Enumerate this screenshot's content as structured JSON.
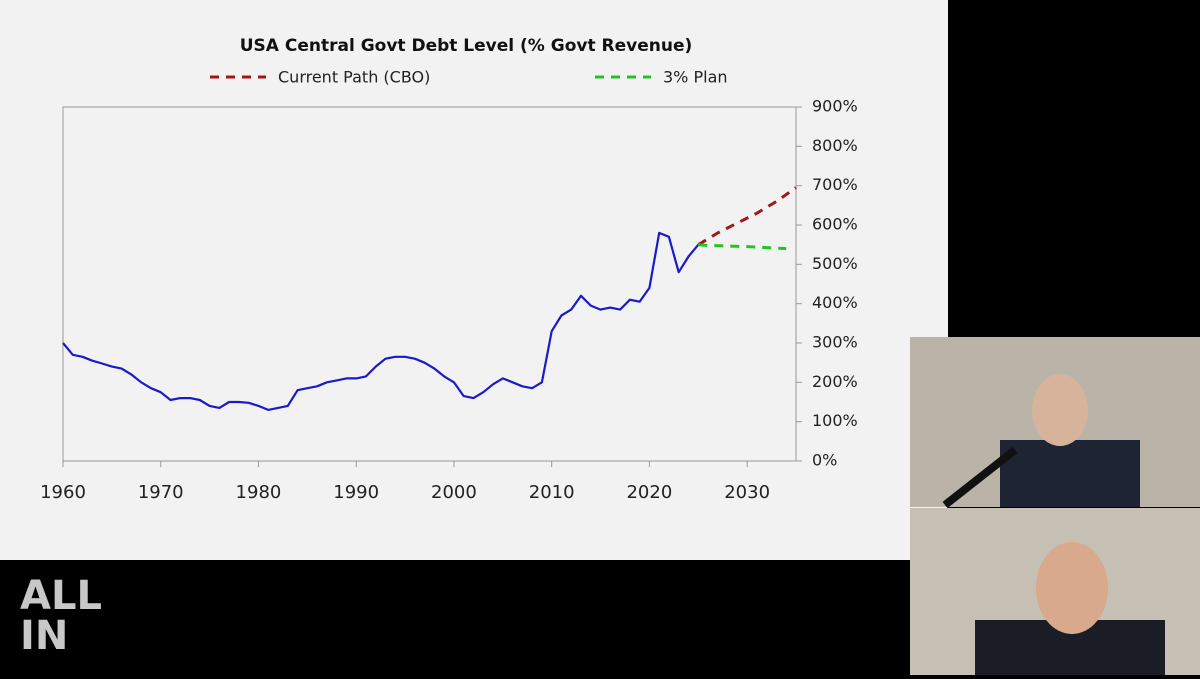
{
  "chart_data": {
    "type": "line",
    "title": "USA Central Govt Debt Level (% Govt Revenue)",
    "xlim": [
      1960,
      2035
    ],
    "xticks": [
      1960,
      1970,
      1980,
      1990,
      2000,
      2010,
      2020,
      2030
    ],
    "ylim": [
      0,
      900
    ],
    "yticks": [
      {
        "value": 0,
        "label": "0%"
      },
      {
        "value": 100,
        "label": "100%"
      },
      {
        "value": 200,
        "label": "200%"
      },
      {
        "value": 300,
        "label": "300%"
      },
      {
        "value": 400,
        "label": "400%"
      },
      {
        "value": 500,
        "label": "500%"
      },
      {
        "value": 600,
        "label": "600%"
      },
      {
        "value": 700,
        "label": "700%"
      },
      {
        "value": 800,
        "label": "800%"
      },
      {
        "value": 900,
        "label": "900%"
      }
    ],
    "series": [
      {
        "color": "#1a1ac8",
        "dashed": false,
        "x": [
          1960,
          1961,
          1962,
          1963,
          1964,
          1965,
          1966,
          1967,
          1968,
          1969,
          1970,
          1971,
          1972,
          1973,
          1974,
          1975,
          1976,
          1977,
          1978,
          1979,
          1980,
          1981,
          1982,
          1983,
          1984,
          1985,
          1986,
          1987,
          1988,
          1989,
          1990,
          1991,
          1992,
          1993,
          1994,
          1995,
          1996,
          1997,
          1998,
          1999,
          2000,
          2001,
          2002,
          2003,
          2004,
          2005,
          2006,
          2007,
          2008,
          2009,
          2010,
          2011,
          2012,
          2013,
          2014,
          2015,
          2016,
          2017,
          2018,
          2019,
          2020,
          2021,
          2022,
          2023,
          2024,
          2025
        ],
        "values": [
          300,
          270,
          265,
          255,
          248,
          240,
          235,
          220,
          200,
          185,
          175,
          155,
          160,
          160,
          155,
          140,
          135,
          150,
          150,
          148,
          140,
          130,
          135,
          140,
          180,
          185,
          190,
          200,
          205,
          210,
          210,
          215,
          240,
          260,
          265,
          265,
          260,
          250,
          235,
          215,
          200,
          165,
          160,
          175,
          195,
          210,
          200,
          190,
          185,
          200,
          330,
          370,
          385,
          420,
          395,
          385,
          390,
          385,
          410,
          405,
          440,
          580,
          570,
          480,
          520,
          550
        ]
      },
      {
        "name": "Current Path (CBO)",
        "color": "#a01818",
        "dashed": true,
        "x": [
          2025,
          2027,
          2029,
          2031,
          2033,
          2035
        ],
        "values": [
          550,
          580,
          605,
          630,
          660,
          695
        ]
      },
      {
        "name": "3% Plan",
        "color": "#22c422",
        "dashed": true,
        "x": [
          2025,
          2026,
          2030,
          2034
        ],
        "values": [
          550,
          548,
          545,
          540
        ]
      }
    ]
  },
  "logo": {
    "lines": [
      "ALL",
      "IN"
    ]
  }
}
